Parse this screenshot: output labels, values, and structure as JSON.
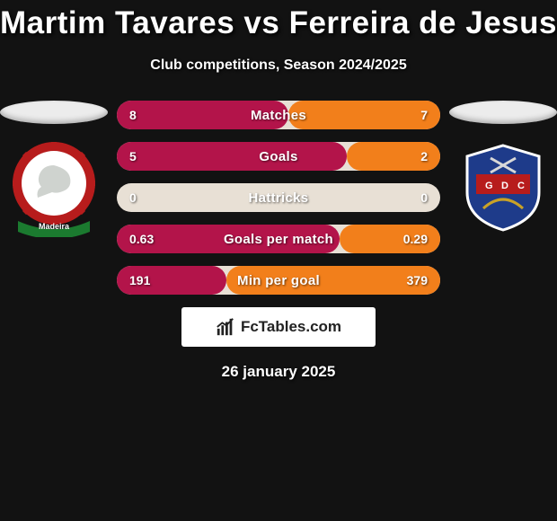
{
  "title": "Martim Tavares vs Ferreira de Jesus",
  "subtitle": "Club competitions, Season 2024/2025",
  "date": "26 january 2025",
  "brand": "FcTables.com",
  "colors": {
    "leftFill": "#b3144a",
    "rightFill": "#f27f1b",
    "barBg": "#e8e0d5",
    "background": "#121212"
  },
  "players": {
    "left": {
      "name": "Martim Tavares"
    },
    "right": {
      "name": "Ferreira de Jesus"
    }
  },
  "stats": [
    {
      "label": "Matches",
      "leftVal": "8",
      "rightVal": "7",
      "leftPct": 53,
      "rightPct": 47
    },
    {
      "label": "Goals",
      "leftVal": "5",
      "rightVal": "2",
      "leftPct": 71,
      "rightPct": 29
    },
    {
      "label": "Hattricks",
      "leftVal": "0",
      "rightVal": "0",
      "leftPct": 0,
      "rightPct": 0
    },
    {
      "label": "Goals per match",
      "leftVal": "0.63",
      "rightVal": "0.29",
      "leftPct": 69,
      "rightPct": 31
    },
    {
      "label": "Min per goal",
      "leftVal": "191",
      "rightVal": "379",
      "leftPct": 34,
      "rightPct": 66
    }
  ]
}
